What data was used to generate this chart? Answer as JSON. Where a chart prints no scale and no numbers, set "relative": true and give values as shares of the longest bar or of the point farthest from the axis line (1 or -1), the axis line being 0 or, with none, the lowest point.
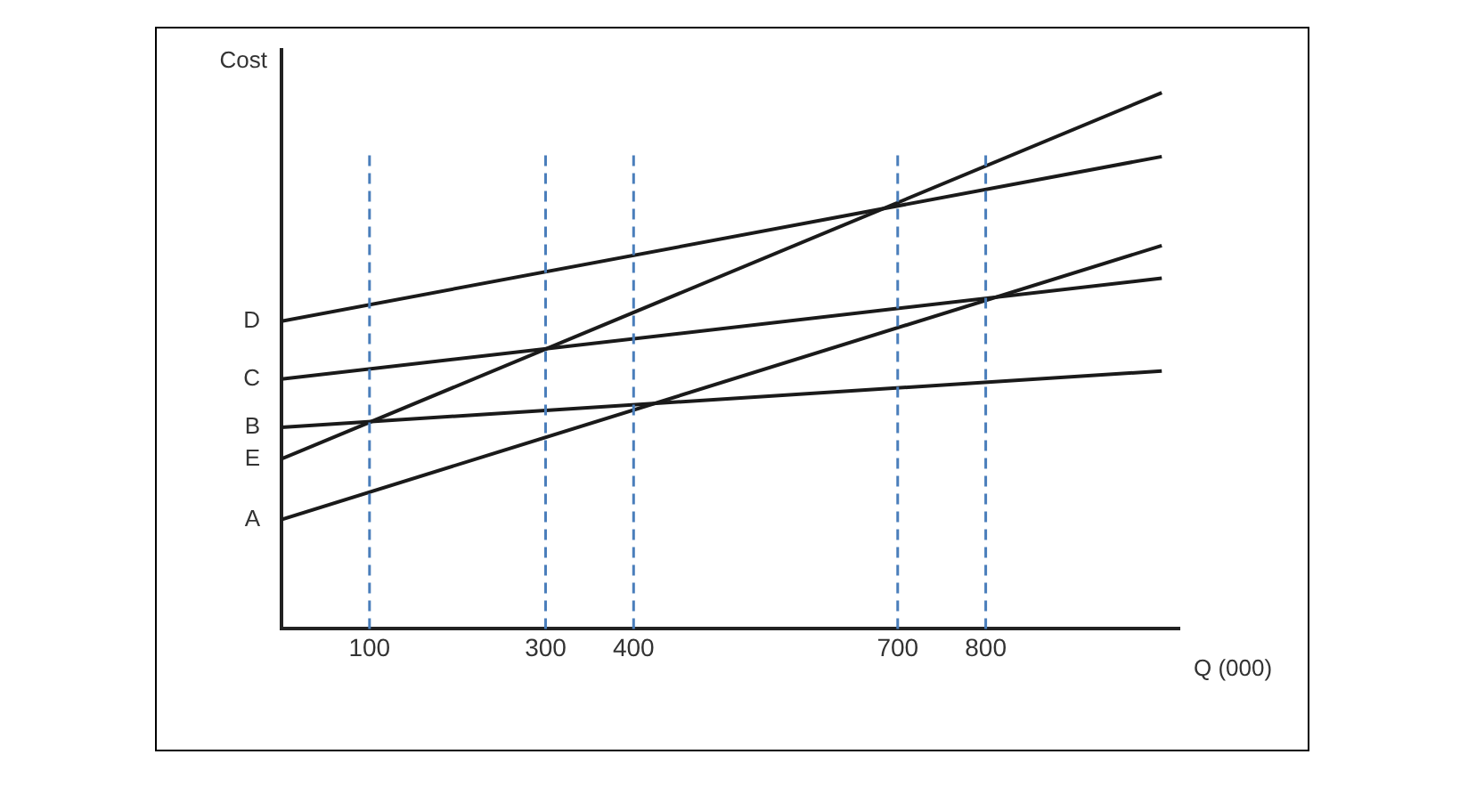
{
  "chart_data": {
    "type": "line",
    "xlabel": "Q (000)",
    "ylabel": "Cost",
    "relative": true,
    "x": [
      0,
      1000
    ],
    "xlim": [
      0,
      1020
    ],
    "xticks": [
      100,
      300,
      400,
      700,
      800
    ],
    "grid": false,
    "legend": "left",
    "marker": "none",
    "line_style": "solid",
    "series": [
      {
        "name": "D",
        "color": "#1a1a1a",
        "values": [
          0.574,
          0.881
        ]
      },
      {
        "name": "C",
        "color": "#1a1a1a",
        "values": [
          0.466,
          0.654
        ]
      },
      {
        "name": "B",
        "color": "#1a1a1a",
        "values": [
          0.376,
          0.481
        ]
      },
      {
        "name": "E",
        "color": "#1a1a1a",
        "values": [
          0.317,
          1
        ]
      },
      {
        "name": "A",
        "color": "#1a1a1a",
        "values": [
          0.204,
          0.715
        ]
      }
    ],
    "ref_lines": [
      {
        "axis": "x",
        "value": 100,
        "color": "#4a7ebb",
        "line_style": "dashed"
      },
      {
        "axis": "x",
        "value": 300,
        "color": "#4a7ebb",
        "line_style": "dashed"
      },
      {
        "axis": "x",
        "value": 400,
        "color": "#4a7ebb",
        "line_style": "dashed"
      },
      {
        "axis": "x",
        "value": 700,
        "color": "#4a7ebb",
        "line_style": "dashed"
      },
      {
        "axis": "x",
        "value": 800,
        "color": "#4a7ebb",
        "line_style": "dashed"
      }
    ]
  }
}
